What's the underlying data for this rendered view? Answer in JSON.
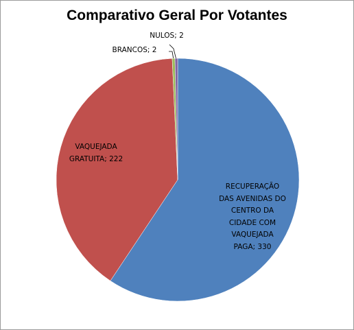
{
  "chart_data": {
    "type": "pie",
    "title": "Comparativo Geral Por Votantes",
    "categories": [
      "RECUPERAÇÃO DAS AVENIDAS DO CENTRO DA CIDADE COM VAQUEJADA PAGA",
      "VAQUEJADA GRATUITA",
      "BRANCOS",
      "NULOS"
    ],
    "values": [
      330,
      222,
      2,
      2
    ],
    "colors": [
      "#4f81bd",
      "#c0504d",
      "#9bbb59",
      "#8064a2"
    ],
    "label_separator": "; "
  }
}
